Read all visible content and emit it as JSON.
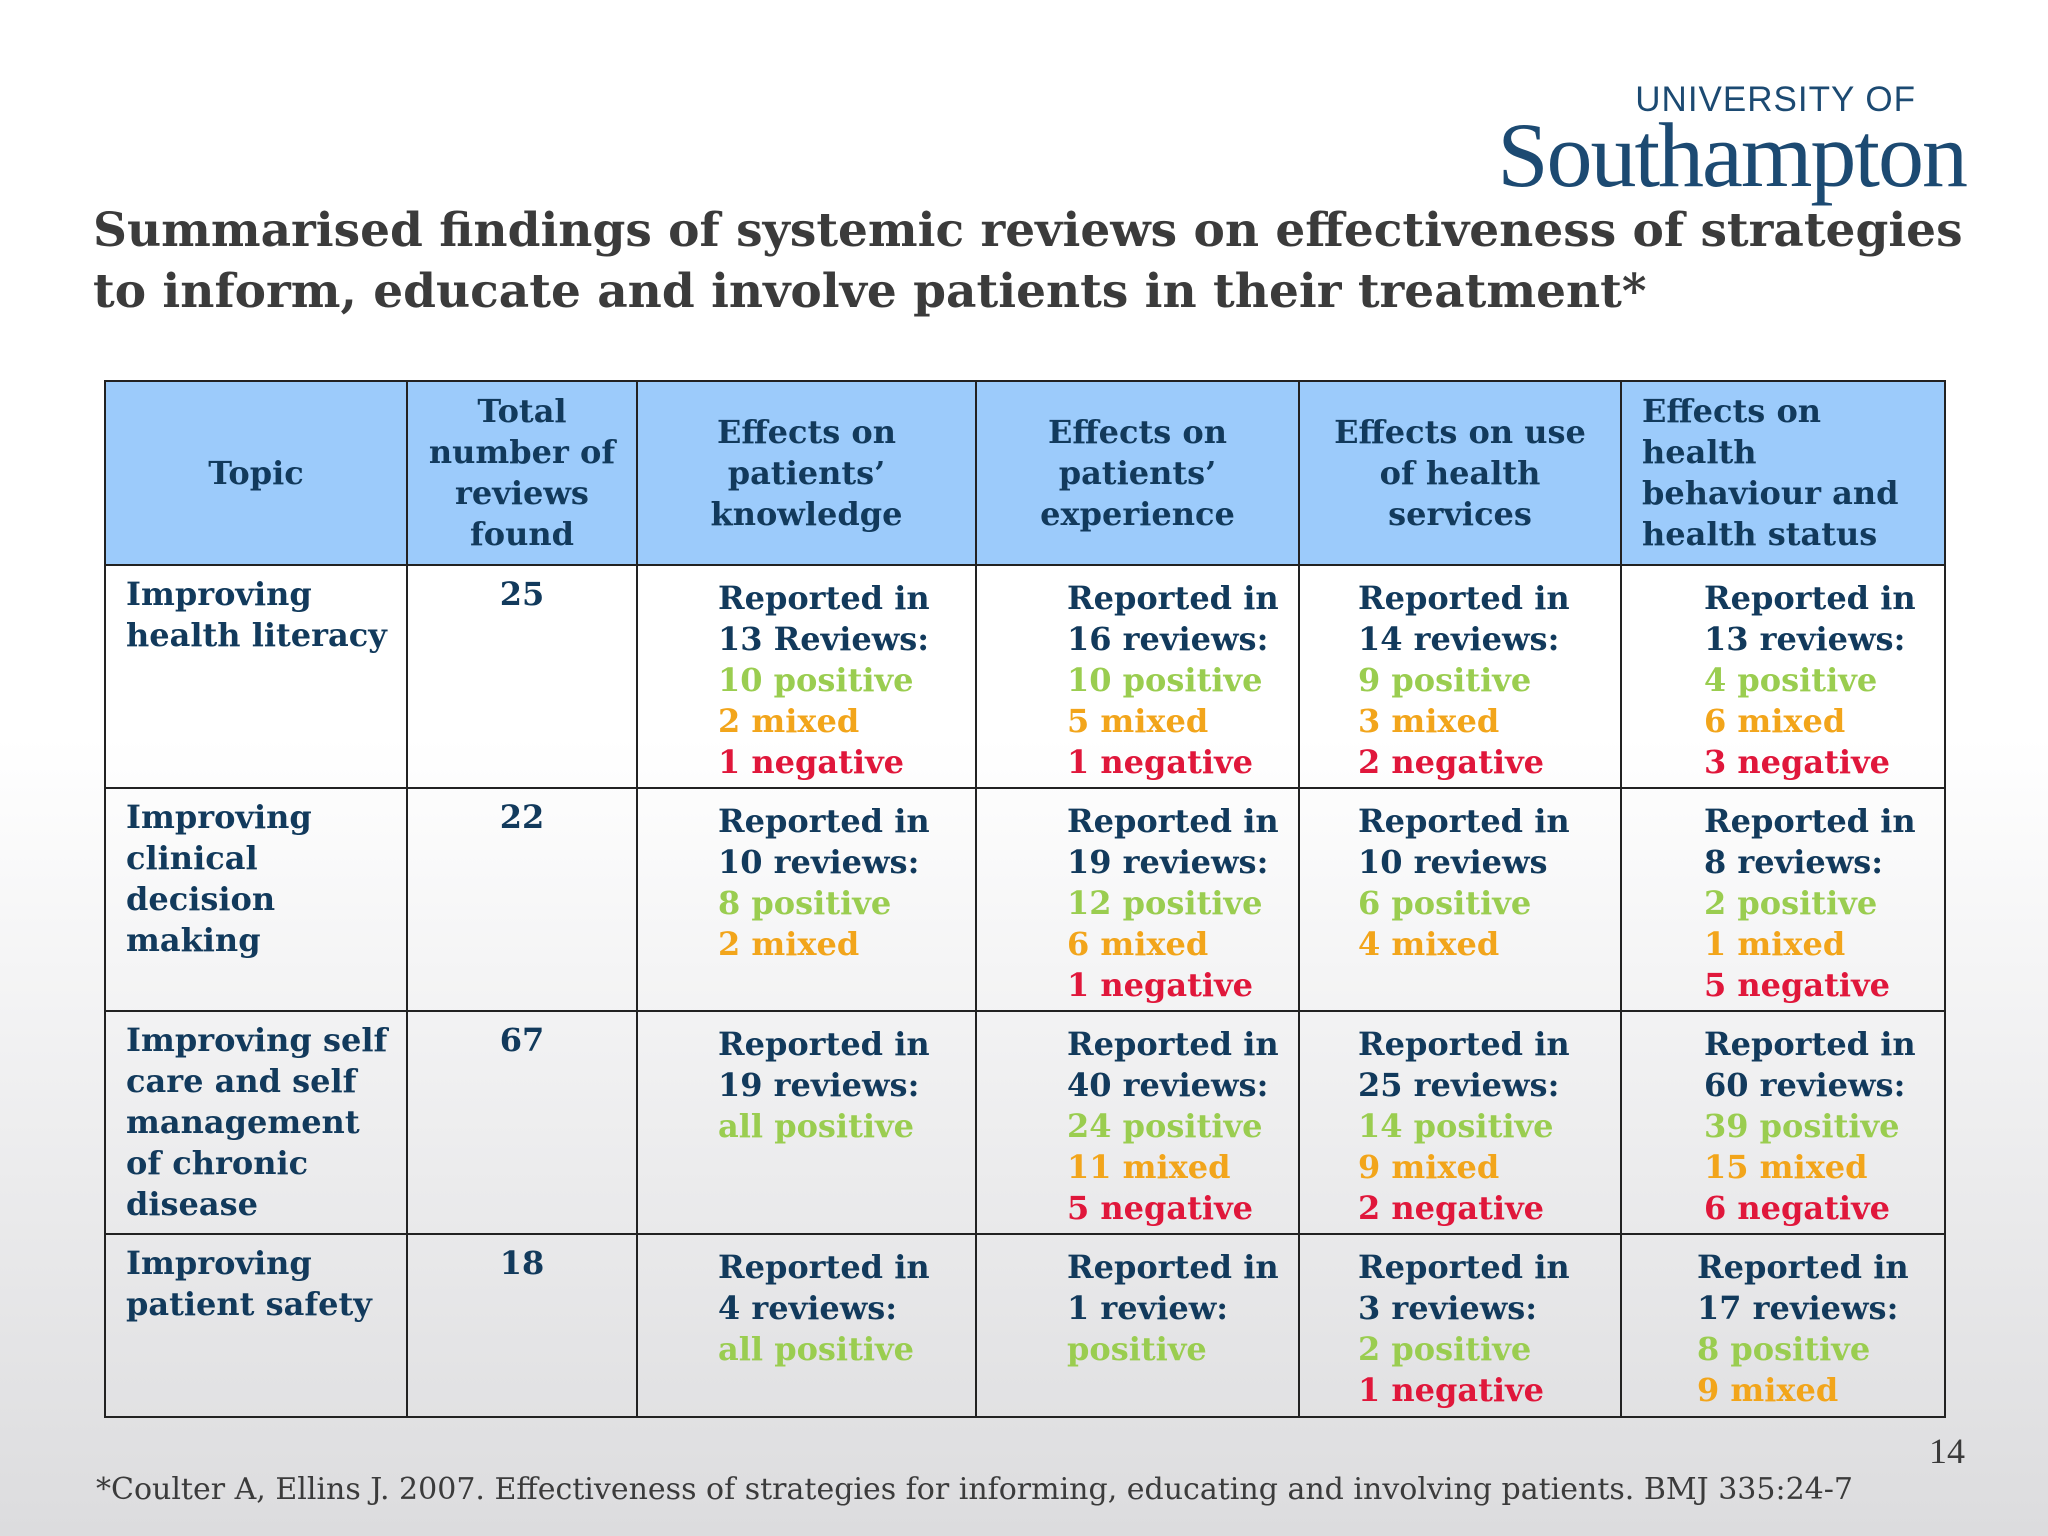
{
  "logo": {
    "top": "UNIVERSITY OF",
    "main": "Southampton"
  },
  "title": "Summarised findings of systemic reviews on effectiveness of strategies to inform, educate and involve patients in their treatment*",
  "table": {
    "headers": [
      "Topic",
      "Total number of reviews found",
      "Effects on patients’ knowledge",
      "Effects on patients’ experience",
      "Effects on use of health services",
      "Effects on health behaviour and health status"
    ],
    "rows": [
      {
        "topic": "Improving health literacy",
        "total": "25",
        "cells": [
          {
            "reported": "Reported in",
            "count": "13 Reviews:",
            "positive": "10 positive",
            "mixed": "2 mixed",
            "negative": "1 negative"
          },
          {
            "reported": "Reported in",
            "count": "16 reviews:",
            "positive": "10 positive",
            "mixed": "5 mixed",
            "negative": "1 negative"
          },
          {
            "reported": "Reported in",
            "count": "14 reviews:",
            "positive": "9 positive",
            "mixed": "3 mixed",
            "negative": "2 negative"
          },
          {
            "reported": "Reported in",
            "count": "13 reviews:",
            "positive": "4 positive",
            "mixed": "6 mixed",
            "negative": "3 negative"
          }
        ]
      },
      {
        "topic": "Improving clinical decision making",
        "total": "22",
        "cells": [
          {
            "reported": "Reported in",
            "count": "10 reviews:",
            "positive": "8 positive",
            "mixed": "2 mixed",
            "negative": ""
          },
          {
            "reported": "Reported in",
            "count": "19 reviews:",
            "positive": "12 positive",
            "mixed": "6 mixed",
            "negative": "1 negative"
          },
          {
            "reported": "Reported in",
            "count": "10 reviews",
            "positive": "6 positive",
            "mixed": "4 mixed",
            "negative": ""
          },
          {
            "reported": "Reported in",
            "count": "8 reviews:",
            "positive": "2 positive",
            "mixed": "1 mixed",
            "negative": "5 negative"
          }
        ]
      },
      {
        "topic": "Improving self care and self management of chronic disease",
        "total": "67",
        "cells": [
          {
            "reported": "Reported in",
            "count": "19 reviews:",
            "positive": "all positive",
            "mixed": "",
            "negative": ""
          },
          {
            "reported": "Reported in",
            "count": "40 reviews:",
            "positive": "24 positive",
            "mixed": "11 mixed",
            "negative": "5 negative"
          },
          {
            "reported": "Reported in",
            "count": "25 reviews:",
            "positive": "14 positive",
            "mixed": "9 mixed",
            "negative": "2 negative"
          },
          {
            "reported": "Reported in",
            "count": "60 reviews:",
            "positive": "39 positive",
            "mixed": "15 mixed",
            "negative": "6 negative"
          }
        ]
      },
      {
        "topic": "Improving patient safety",
        "total": "18",
        "cells": [
          {
            "reported": "Reported in",
            "count": "4 reviews:",
            "positive": "all positive",
            "mixed": "",
            "negative": ""
          },
          {
            "reported": "Reported in",
            "count": "1 review:",
            "positive": "positive",
            "mixed": "",
            "negative": ""
          },
          {
            "reported": "Reported in",
            "count": "3 reviews:",
            "positive": "2 positive",
            "mixed": "",
            "negative": "1 negative"
          },
          {
            "reported": "Reported in",
            "count": "17 reviews:",
            "positive": "8 positive",
            "mixed": "9 mixed",
            "negative": ""
          }
        ]
      }
    ]
  },
  "page_number": "14",
  "footnote": "*Coulter A, Ellins J. 2007. Effectiveness of strategies for informing, educating and involving patients. BMJ 335:24-7",
  "colors": {
    "positive": "#9acd50",
    "mixed": "#f2a51b",
    "negative": "#e0173b",
    "header_bg": "#9ccbfb",
    "text": "#123a5c",
    "logo": "#1c4a72"
  }
}
